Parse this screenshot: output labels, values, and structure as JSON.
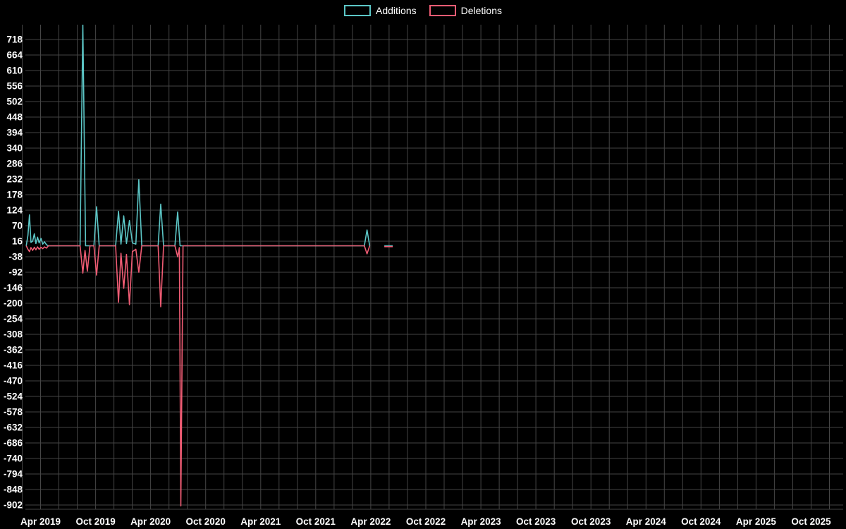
{
  "page": {
    "background": "#000000",
    "text_color": "#ffffff",
    "grid_color": "#454545"
  },
  "chart_data": {
    "type": "line",
    "title": "",
    "legend_position": "top-center",
    "grid": true,
    "x_axis": {
      "tick_labels": [
        "Apr 2019",
        "Oct 2019",
        "Apr 2020",
        "Oct 2020",
        "Apr 2021",
        "Oct 2021",
        "Apr 2022",
        "Oct 2022",
        "Apr 2023",
        "Oct 2023",
        "Oct 2023",
        "Apr 2024",
        "Oct 2024",
        "Apr 2025",
        "Oct 2025"
      ],
      "months_per_tick": 5.5714,
      "unit": "months_since_first_tick"
    },
    "y_axis": {
      "tick_values": [
        718,
        664,
        610,
        556,
        502,
        448,
        394,
        340,
        286,
        232,
        178,
        124,
        70,
        16,
        -38,
        -92,
        -146,
        -200,
        -254,
        -308,
        -362,
        -416,
        -470,
        -524,
        -578,
        -632,
        -686,
        -740,
        -794,
        -848,
        -902
      ],
      "tick_step": 54,
      "ylim": [
        -920,
        775
      ]
    },
    "series": [
      {
        "name": "Additions",
        "color": "#5cc6c6",
        "segments": [
          [
            [
              -1.45,
              0
            ],
            [
              -1.28,
              36
            ],
            [
              -1.12,
              108
            ],
            [
              -0.97,
              12
            ],
            [
              -0.8,
              16
            ],
            [
              -0.63,
              42
            ],
            [
              -0.47,
              8
            ],
            [
              -0.3,
              30
            ],
            [
              -0.14,
              10
            ],
            [
              0.05,
              26
            ],
            [
              0.22,
              6
            ],
            [
              0.4,
              14
            ],
            [
              0.6,
              4
            ],
            [
              0.8,
              0
            ],
            [
              4.0,
              0
            ],
            [
              4.28,
              770
            ],
            [
              4.56,
              0
            ],
            [
              5.4,
              0
            ],
            [
              5.67,
              136
            ],
            [
              5.94,
              0
            ],
            [
              7.6,
              0
            ],
            [
              7.89,
              120
            ],
            [
              8.14,
              6
            ],
            [
              8.42,
              104
            ],
            [
              8.7,
              8
            ],
            [
              9.0,
              88
            ],
            [
              9.3,
              10
            ],
            [
              9.65,
              6
            ],
            [
              9.95,
              230
            ],
            [
              10.25,
              0
            ],
            [
              11.9,
              0
            ],
            [
              12.17,
              145
            ],
            [
              12.45,
              0
            ],
            [
              13.6,
              0
            ],
            [
              13.88,
              118
            ],
            [
              14.12,
              0
            ],
            [
              32.78,
              0
            ],
            [
              33.05,
              55
            ],
            [
              33.32,
              0
            ]
          ],
          [
            [
              34.8,
              0
            ],
            [
              35.65,
              0
            ]
          ]
        ]
      },
      {
        "name": "Deletions",
        "color": "#f05c74",
        "segments": [
          [
            [
              -1.45,
              0
            ],
            [
              -1.28,
              -12
            ],
            [
              -1.12,
              -20
            ],
            [
              -0.97,
              -6
            ],
            [
              -0.8,
              -16
            ],
            [
              -0.63,
              -5
            ],
            [
              -0.47,
              -14
            ],
            [
              -0.3,
              -4
            ],
            [
              -0.14,
              -12
            ],
            [
              0.05,
              -5
            ],
            [
              0.22,
              -10
            ],
            [
              0.4,
              -4
            ],
            [
              0.6,
              -8
            ],
            [
              0.8,
              0
            ],
            [
              4.0,
              0
            ],
            [
              4.28,
              -95
            ],
            [
              4.5,
              -16
            ],
            [
              4.74,
              -88
            ],
            [
              5.0,
              0
            ],
            [
              5.4,
              0
            ],
            [
              5.67,
              -102
            ],
            [
              5.94,
              0
            ],
            [
              7.6,
              0
            ],
            [
              7.89,
              -196
            ],
            [
              8.14,
              -26
            ],
            [
              8.42,
              -148
            ],
            [
              8.7,
              -30
            ],
            [
              9.0,
              -205
            ],
            [
              9.3,
              -20
            ],
            [
              9.65,
              -12
            ],
            [
              9.95,
              -92
            ],
            [
              10.25,
              0
            ],
            [
              11.9,
              0
            ],
            [
              12.17,
              -212
            ],
            [
              12.45,
              0
            ],
            [
              13.6,
              0
            ],
            [
              13.88,
              -38
            ],
            [
              14.05,
              -6
            ],
            [
              14.2,
              -905
            ],
            [
              14.42,
              0
            ],
            [
              32.78,
              0
            ],
            [
              33.05,
              -28
            ],
            [
              33.32,
              0
            ]
          ],
          [
            [
              34.8,
              -3
            ],
            [
              35.65,
              -3
            ]
          ]
        ]
      }
    ]
  }
}
